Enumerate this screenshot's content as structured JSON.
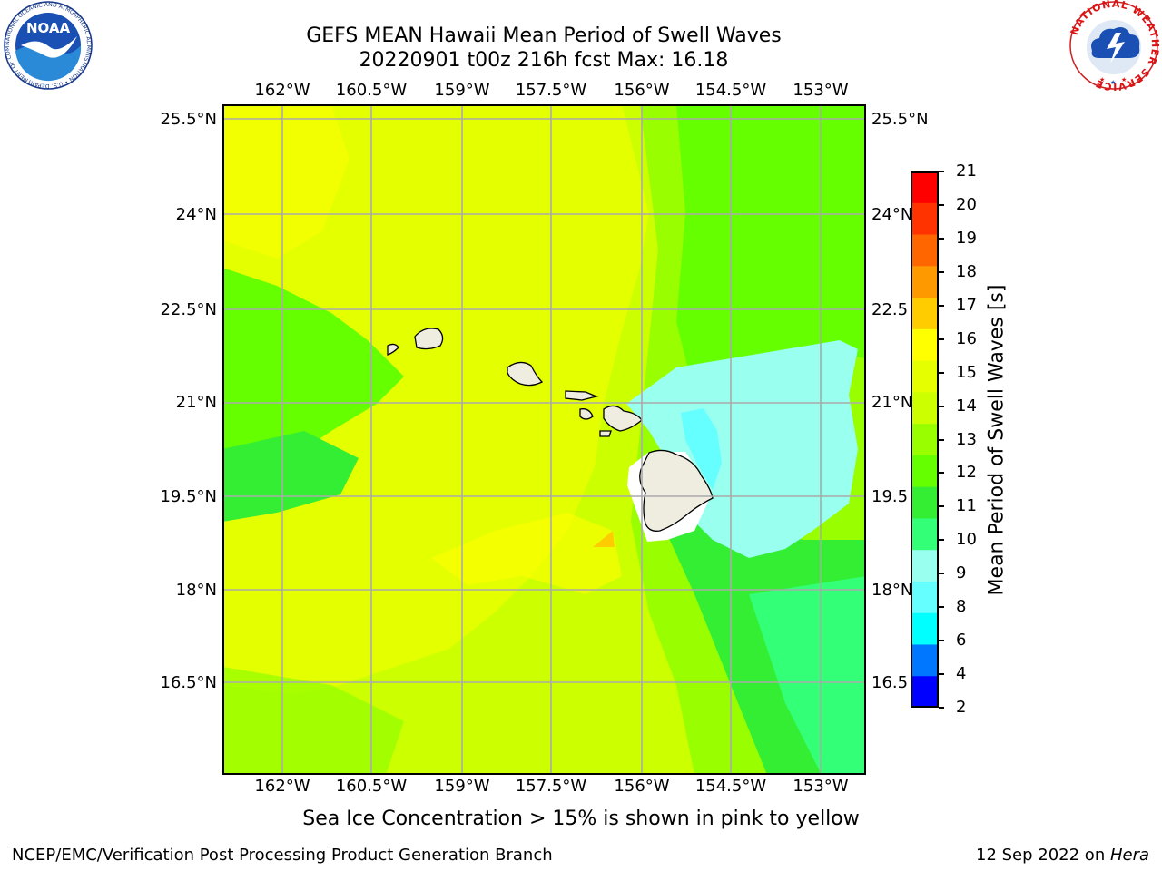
{
  "title": {
    "line1": "GEFS MEAN Hawaii Mean Period of Swell Waves",
    "line2": "20220901 t00z 216h fcst   Max: 16.18"
  },
  "map": {
    "lon_labels": [
      "162°W",
      "160.5°W",
      "159°W",
      "157.5°W",
      "156°W",
      "154.5°W",
      "153°W"
    ],
    "lat_labels": [
      "25.5°N",
      "24°N",
      "22.5°N",
      "21°N",
      "19.5°N",
      "18°N",
      "16.5°N"
    ],
    "lat_labels_right": [
      "25.5°N",
      "24°N",
      "22.5",
      "21°N",
      "19.5",
      "18°N",
      "16.5"
    ],
    "islands": [
      "Kauai",
      "Niihau",
      "Oahu",
      "Molokai",
      "Lanai",
      "Maui",
      "Kahoolawe",
      "Hawaii"
    ]
  },
  "colorbar": {
    "label": "Mean Period of Swell Waves [s]",
    "ticks": [
      "21",
      "20",
      "19",
      "18",
      "17",
      "16",
      "15",
      "14",
      "13",
      "12",
      "11",
      "10",
      "9",
      "8",
      "6",
      "4",
      "2"
    ],
    "colors": [
      "#ff0000",
      "#ff3300",
      "#ff6600",
      "#ff9900",
      "#ffcc00",
      "#ffff00",
      "#e6ff00",
      "#ccff00",
      "#99ff00",
      "#66ff00",
      "#33ee33",
      "#33ff77",
      "#99ffee",
      "#66ffff",
      "#00ffff",
      "#0077ff",
      "#0000ff"
    ]
  },
  "caption": "Sea Ice Concentration > 15% is shown in pink to yellow",
  "footer": {
    "left": "NCEP/EMC/Verification Post Processing Product Generation Branch",
    "date": "12 Sep 2022 on ",
    "machine": "Hera"
  },
  "logos": {
    "noaa_text": "NOAA",
    "noaa_ring": "NATIONAL OCEANIC AND ATMOSPHERIC ADMINISTRATION • U.S. DEPARTMENT OF COMMERCE",
    "nws_ring": "NATIONAL WEATHER SERVICE"
  }
}
